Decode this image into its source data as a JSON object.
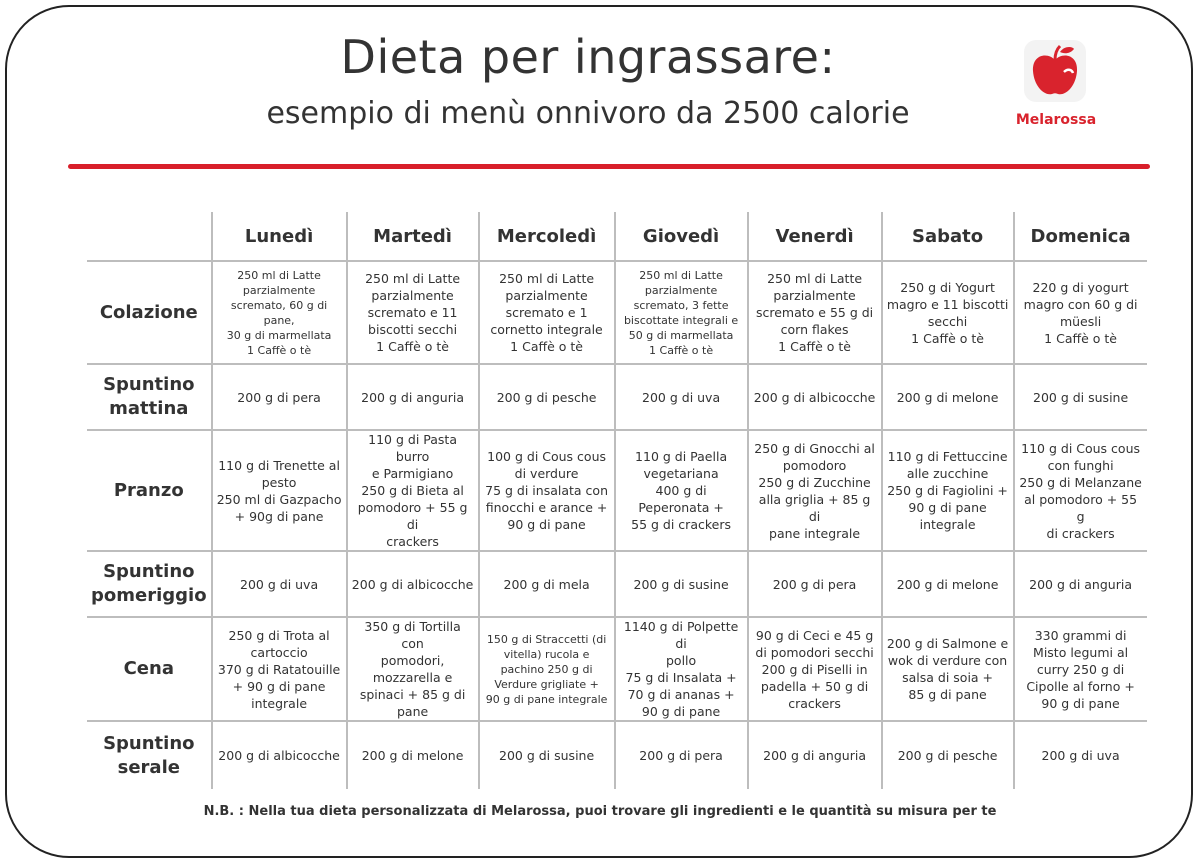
{
  "header": {
    "title": "Dieta per ingrassare:",
    "subtitle": "esempio di menù onnivoro da 2500 calorie",
    "logo_text": "Melarossa",
    "accent_color": "#d81f2a"
  },
  "table": {
    "days": [
      "Lunedì",
      "Martedì",
      "Mercoledì",
      "Giovedì",
      "Venerdì",
      "Sabato",
      "Domenica"
    ],
    "rows": [
      {
        "meal": "Colazione",
        "cells": [
          "250 ml di Latte\nparzialmente\nscremato, 60 g di pane,\n30 g di marmellata\n1 Caffè o tè",
          "250 ml di Latte\nparzialmente\nscremato e 11\nbiscotti secchi\n1 Caffè o tè",
          "250 ml di Latte\nparzialmente\nscremato e 1\ncornetto integrale\n1 Caffè o tè",
          "250 ml di Latte\nparzialmente\nscremato, 3 fette\nbiscottate integrali e\n50 g di marmellata\n1 Caffè o tè",
          "250 ml di Latte\nparzialmente\nscremato e 55 g di\ncorn flakes\n1 Caffè o tè",
          "250 g di Yogurt\nmagro e 11 biscotti\nsecchi\n1 Caffè o tè",
          "220 g di yogurt\nmagro con 60 g di\nmüesli\n1 Caffè o tè"
        ]
      },
      {
        "meal": "Spuntino\nmattina",
        "cells": [
          "200 g di pera",
          "200 g di anguria",
          "200 g di pesche",
          "200 g di uva",
          "200 g di albicocche",
          "200 g di melone",
          "200 g di susine"
        ]
      },
      {
        "meal": "Pranzo",
        "cells": [
          "110 g di Trenette al\npesto\n250 ml di Gazpacho\n+ 90g di pane",
          "110 g di Pasta burro\ne Parmigiano\n250 g di Bieta al\npomodoro + 55 g di\ncrackers",
          "100 g di Cous cous\ndi verdure\n75 g di insalata con\nfinocchi e arance +\n90 g di pane",
          "110 g di Paella\nvegetariana\n400 g di\nPeperonata +\n55 g di crackers",
          "250 g di Gnocchi al\npomodoro\n250 g di Zucchine\nalla griglia + 85 g di\npane integrale",
          "110 g di Fettuccine\nalle zucchine\n250 g di Fagiolini +\n90 g di pane\nintegrale",
          "110 g di Cous cous\ncon funghi\n250 g di Melanzane\nal pomodoro + 55 g\ndi crackers"
        ]
      },
      {
        "meal": "Spuntino\npomeriggio",
        "cells": [
          "200 g di uva",
          "200 g di albicocche",
          "200 g di mela",
          "200 g di susine",
          "200 g di pera",
          "200 g di melone",
          "200 g di anguria"
        ]
      },
      {
        "meal": "Cena",
        "cells": [
          "250 g di Trota al\ncartoccio\n370 g di Ratatouille\n+ 90 g di pane\nintegrale",
          "350 g di Tortilla con\npomodori,\nmozzarella e\nspinaci + 85 g di\npane",
          "150 g di Straccetti (di\nvitella) rucola e\npachino 250 g di\nVerdure grigliate +\n90 g di pane integrale",
          "1140 g di Polpette di\npollo\n75 g di Insalata +\n70 g di ananas +\n90 g di pane",
          "90 g di Ceci e 45 g\ndi pomodori secchi\n200 g di Piselli in\npadella + 50 g di\ncrackers",
          "200 g di Salmone e\nwok di verdure con\nsalsa di soia +\n85 g di pane",
          "330 grammi di\nMisto legumi al\ncurry  250 g di\nCipolle al forno +\n90 g di pane"
        ]
      },
      {
        "meal": "Spuntino\nserale",
        "cells": [
          "200 g di albicocche",
          "200 g di melone",
          "200 g di susine",
          "200 g di pera",
          "200 g di anguria",
          "200 g di pesche",
          "200 g di uva"
        ]
      }
    ]
  },
  "note": "N.B. : Nella tua dieta personalizzata di Melarossa, puoi trovare gli ingredienti e le quantità su misura per te",
  "icons": {
    "logo": "apple-logo-icon"
  }
}
